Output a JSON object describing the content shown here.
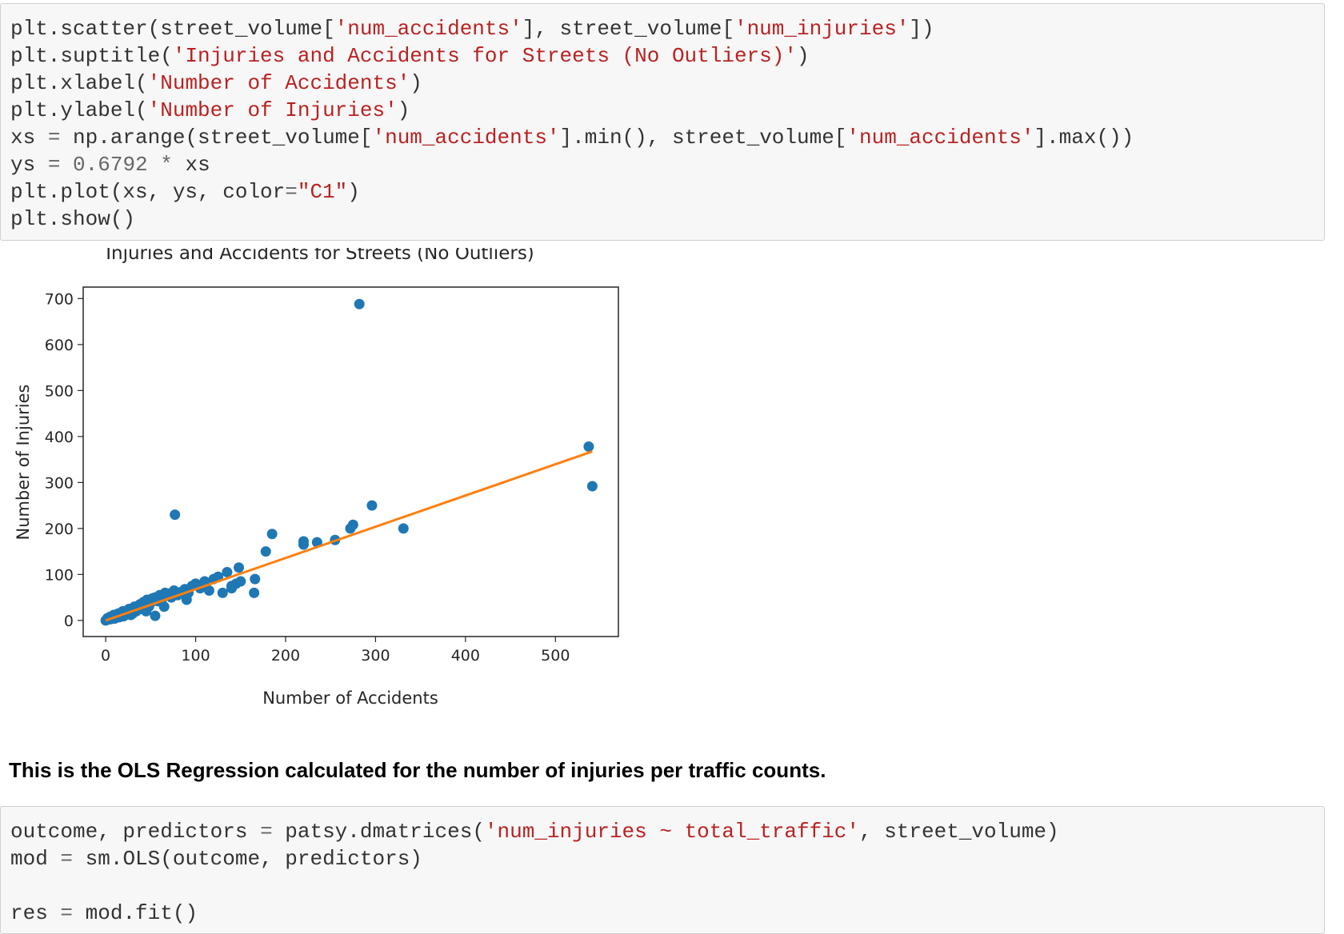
{
  "code_cell_1": {
    "lines": [
      [
        {
          "t": "plt.scatter(street_volume[",
          "c": "p"
        },
        {
          "t": "'num_accidents'",
          "c": "s"
        },
        {
          "t": "], street_volume[",
          "c": "p"
        },
        {
          "t": "'num_injuries'",
          "c": "s"
        },
        {
          "t": "])",
          "c": "p"
        }
      ],
      [
        {
          "t": "plt.suptitle(",
          "c": "p"
        },
        {
          "t": "'Injuries and Accidents for Streets (No Outliers)'",
          "c": "s"
        },
        {
          "t": ")",
          "c": "p"
        }
      ],
      [
        {
          "t": "plt.xlabel(",
          "c": "p"
        },
        {
          "t": "'Number of Accidents'",
          "c": "s"
        },
        {
          "t": ")",
          "c": "p"
        }
      ],
      [
        {
          "t": "plt.ylabel(",
          "c": "p"
        },
        {
          "t": "'Number of Injuries'",
          "c": "s"
        },
        {
          "t": ")",
          "c": "p"
        }
      ],
      [
        {
          "t": "xs ",
          "c": "p"
        },
        {
          "t": "=",
          "c": "o"
        },
        {
          "t": " np.arange(street_volume[",
          "c": "p"
        },
        {
          "t": "'num_accidents'",
          "c": "s"
        },
        {
          "t": "].min(), street_volume[",
          "c": "p"
        },
        {
          "t": "'num_accidents'",
          "c": "s"
        },
        {
          "t": "].max())",
          "c": "p"
        }
      ],
      [
        {
          "t": "ys ",
          "c": "p"
        },
        {
          "t": "=",
          "c": "o"
        },
        {
          "t": " ",
          "c": "p"
        },
        {
          "t": "0.6792",
          "c": "n"
        },
        {
          "t": " ",
          "c": "p"
        },
        {
          "t": "*",
          "c": "o"
        },
        {
          "t": " xs",
          "c": "p"
        }
      ],
      [
        {
          "t": "plt.plot(xs, ys, color",
          "c": "p"
        },
        {
          "t": "=",
          "c": "o"
        },
        {
          "t": "\"C1\"",
          "c": "s"
        },
        {
          "t": ")",
          "c": "p"
        }
      ],
      [
        {
          "t": "plt.show()",
          "c": "p"
        }
      ]
    ]
  },
  "markdown_text": "This is the OLS Regression calculated for the number of injuries per traffic counts.",
  "code_cell_2": {
    "lines": [
      [
        {
          "t": "outcome, predictors ",
          "c": "p"
        },
        {
          "t": "=",
          "c": "o"
        },
        {
          "t": " patsy.dmatrices(",
          "c": "p"
        },
        {
          "t": "'num_injuries ~ total_traffic'",
          "c": "s"
        },
        {
          "t": ", street_volume)",
          "c": "p"
        }
      ],
      [
        {
          "t": "mod ",
          "c": "p"
        },
        {
          "t": "=",
          "c": "o"
        },
        {
          "t": " sm.OLS(outcome, predictors)",
          "c": "p"
        }
      ],
      [
        {
          "t": "",
          "c": "p"
        }
      ],
      [
        {
          "t": "res ",
          "c": "p"
        },
        {
          "t": "=",
          "c": "o"
        },
        {
          "t": " mod.fit()",
          "c": "p"
        }
      ]
    ]
  },
  "colors": {
    "scatter": "#1f77b4",
    "line": "#ff7f0e"
  },
  "chart_data": {
    "type": "scatter",
    "title": "Injuries and Accidents for Streets (No Outliers)",
    "xlabel": "Number of Accidents",
    "ylabel": "Number of Injuries",
    "xlim": [
      -25,
      570
    ],
    "ylim": [
      -35,
      725
    ],
    "xticks": [
      0,
      100,
      200,
      300,
      400,
      500
    ],
    "yticks": [
      0,
      100,
      200,
      300,
      400,
      500,
      600,
      700
    ],
    "x": [
      0,
      2,
      3,
      5,
      6,
      8,
      9,
      10,
      12,
      14,
      15,
      17,
      19,
      20,
      22,
      24,
      26,
      28,
      30,
      32,
      34,
      36,
      38,
      40,
      42,
      44,
      46,
      48,
      50,
      52,
      55,
      58,
      60,
      63,
      66,
      70,
      73,
      76,
      80,
      84,
      88,
      92,
      96,
      100,
      105,
      110,
      115,
      120,
      125,
      130,
      135,
      140,
      145,
      150,
      165,
      166,
      178,
      185,
      220,
      220,
      235,
      255,
      272,
      275,
      282,
      296,
      331,
      537,
      541,
      77,
      30,
      45,
      55,
      65,
      90,
      140,
      148
    ],
    "y": [
      0,
      5,
      2,
      8,
      3,
      6,
      12,
      4,
      10,
      15,
      7,
      13,
      20,
      9,
      18,
      16,
      25,
      12,
      22,
      30,
      20,
      28,
      35,
      25,
      40,
      32,
      45,
      30,
      38,
      48,
      50,
      42,
      55,
      48,
      60,
      58,
      50,
      65,
      55,
      62,
      68,
      60,
      75,
      80,
      70,
      85,
      65,
      90,
      95,
      60,
      105,
      70,
      80,
      85,
      60,
      90,
      150,
      188,
      165,
      172,
      170,
      175,
      200,
      208,
      688,
      250,
      200,
      378,
      292,
      230,
      15,
      20,
      10,
      30,
      45,
      75,
      115
    ]
  },
  "regression_line": {
    "slope": 0.6792,
    "x_start": 0,
    "x_end": 541
  }
}
